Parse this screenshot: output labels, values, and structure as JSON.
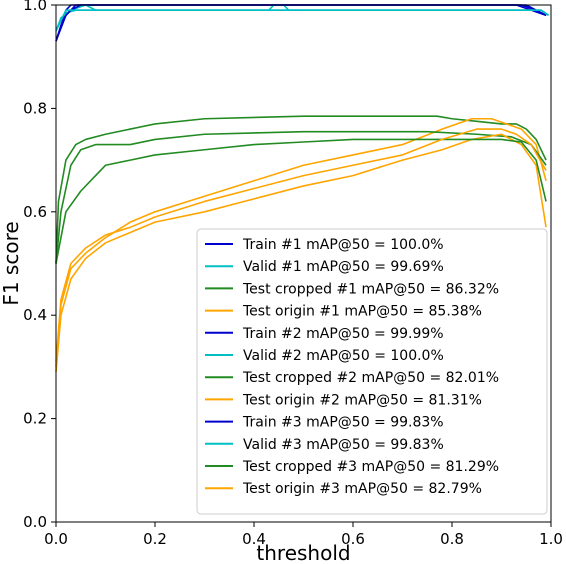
{
  "chart_data": {
    "type": "line",
    "title": "",
    "xlabel": "threshold",
    "ylabel": "F1 score",
    "xlim": [
      0.0,
      1.0
    ],
    "ylim": [
      0.0,
      1.0
    ],
    "xticks": [
      "0.0",
      "0.2",
      "0.4",
      "0.6",
      "0.8",
      "1.0"
    ],
    "yticks": [
      "0.0",
      "0.2",
      "0.4",
      "0.6",
      "0.8",
      "1.0"
    ],
    "grid": false,
    "legend_position": "lower-right",
    "colors": {
      "train": "#0000cd",
      "valid": "#00bfc4",
      "test_cropped": "#228b22",
      "test_origin": "#ffa500"
    },
    "series": [
      {
        "name": "Train #1 mAP@50 = 100.0%",
        "color": "#0000cd",
        "points": [
          [
            0.0,
            0.93
          ],
          [
            0.01,
            0.955
          ],
          [
            0.02,
            0.98
          ],
          [
            0.03,
            0.99
          ],
          [
            0.04,
            1.0
          ],
          [
            0.5,
            1.0
          ],
          [
            0.93,
            1.0
          ],
          [
            0.96,
            0.99
          ],
          [
            0.99,
            0.98
          ]
        ]
      },
      {
        "name": "Valid #1 mAP@50 = 99.69%",
        "color": "#00bfc4",
        "points": [
          [
            0.0,
            0.95
          ],
          [
            0.01,
            0.97
          ],
          [
            0.02,
            0.985
          ],
          [
            0.04,
            0.99
          ],
          [
            0.43,
            0.99
          ],
          [
            0.44,
            1.0
          ],
          [
            0.46,
            1.0
          ],
          [
            0.47,
            0.99
          ],
          [
            0.97,
            0.99
          ],
          [
            0.99,
            0.98
          ]
        ]
      },
      {
        "name": "Test cropped #1 mAP@50 = 86.32%",
        "color": "#228b22",
        "points": [
          [
            0.0,
            0.5
          ],
          [
            0.005,
            0.62
          ],
          [
            0.02,
            0.7
          ],
          [
            0.04,
            0.73
          ],
          [
            0.06,
            0.74
          ],
          [
            0.1,
            0.75
          ],
          [
            0.15,
            0.76
          ],
          [
            0.2,
            0.77
          ],
          [
            0.3,
            0.78
          ],
          [
            0.5,
            0.785
          ],
          [
            0.77,
            0.785
          ],
          [
            0.8,
            0.78
          ],
          [
            0.85,
            0.775
          ],
          [
            0.9,
            0.77
          ],
          [
            0.93,
            0.77
          ],
          [
            0.95,
            0.76
          ],
          [
            0.97,
            0.74
          ],
          [
            0.99,
            0.7
          ]
        ]
      },
      {
        "name": "Test origin #1 mAP@50 = 85.38%",
        "color": "#ffa500",
        "points": [
          [
            0.0,
            0.3
          ],
          [
            0.01,
            0.42
          ],
          [
            0.03,
            0.49
          ],
          [
            0.06,
            0.52
          ],
          [
            0.1,
            0.55
          ],
          [
            0.15,
            0.58
          ],
          [
            0.2,
            0.6
          ],
          [
            0.3,
            0.63
          ],
          [
            0.4,
            0.66
          ],
          [
            0.5,
            0.69
          ],
          [
            0.6,
            0.71
          ],
          [
            0.7,
            0.73
          ],
          [
            0.78,
            0.76
          ],
          [
            0.84,
            0.78
          ],
          [
            0.88,
            0.78
          ],
          [
            0.91,
            0.77
          ],
          [
            0.94,
            0.76
          ],
          [
            0.97,
            0.73
          ],
          [
            0.99,
            0.66
          ]
        ]
      },
      {
        "name": "Train #2 mAP@50 = 99.99%",
        "color": "#0000cd",
        "points": [
          [
            0.0,
            0.93
          ],
          [
            0.01,
            0.96
          ],
          [
            0.02,
            0.99
          ],
          [
            0.03,
            1.0
          ],
          [
            0.5,
            1.0
          ],
          [
            0.94,
            1.0
          ],
          [
            0.97,
            0.99
          ],
          [
            0.99,
            0.98
          ]
        ]
      },
      {
        "name": "Valid #2 mAP@50 = 100.0%",
        "color": "#00bfc4",
        "points": [
          [
            0.0,
            0.95
          ],
          [
            0.01,
            0.975
          ],
          [
            0.03,
            0.99
          ],
          [
            0.06,
            1.0
          ],
          [
            0.08,
            0.99
          ],
          [
            0.5,
            0.99
          ],
          [
            0.98,
            0.99
          ],
          [
            0.995,
            0.98
          ]
        ]
      },
      {
        "name": "Test cropped #2 mAP@50 = 82.01%",
        "color": "#228b22",
        "points": [
          [
            0.0,
            0.5
          ],
          [
            0.01,
            0.6
          ],
          [
            0.03,
            0.69
          ],
          [
            0.05,
            0.72
          ],
          [
            0.08,
            0.73
          ],
          [
            0.15,
            0.73
          ],
          [
            0.2,
            0.74
          ],
          [
            0.3,
            0.75
          ],
          [
            0.5,
            0.755
          ],
          [
            0.75,
            0.755
          ],
          [
            0.85,
            0.75
          ],
          [
            0.92,
            0.745
          ],
          [
            0.96,
            0.73
          ],
          [
            0.99,
            0.69
          ]
        ]
      },
      {
        "name": "Test origin #2 mAP@50 = 81.31%",
        "color": "#ffa500",
        "points": [
          [
            0.0,
            0.29
          ],
          [
            0.01,
            0.4
          ],
          [
            0.03,
            0.47
          ],
          [
            0.06,
            0.51
          ],
          [
            0.1,
            0.54
          ],
          [
            0.15,
            0.56
          ],
          [
            0.2,
            0.58
          ],
          [
            0.3,
            0.6
          ],
          [
            0.4,
            0.625
          ],
          [
            0.5,
            0.65
          ],
          [
            0.6,
            0.67
          ],
          [
            0.7,
            0.7
          ],
          [
            0.78,
            0.72
          ],
          [
            0.84,
            0.74
          ],
          [
            0.9,
            0.75
          ],
          [
            0.94,
            0.73
          ],
          [
            0.97,
            0.69
          ],
          [
            0.99,
            0.57
          ]
        ]
      },
      {
        "name": "Train #3 mAP@50 = 99.83%",
        "color": "#0000cd",
        "points": [
          [
            0.0,
            0.93
          ],
          [
            0.01,
            0.96
          ],
          [
            0.02,
            0.98
          ],
          [
            0.03,
            0.99
          ],
          [
            0.05,
            1.0
          ],
          [
            0.5,
            1.0
          ],
          [
            0.95,
            1.0
          ],
          [
            0.97,
            0.99
          ],
          [
            0.99,
            0.98
          ]
        ]
      },
      {
        "name": "Valid #3 mAP@50 = 99.83%",
        "color": "#00bfc4",
        "points": [
          [
            0.0,
            0.95
          ],
          [
            0.01,
            0.97
          ],
          [
            0.02,
            0.99
          ],
          [
            0.5,
            0.99
          ],
          [
            0.98,
            0.99
          ],
          [
            0.995,
            0.98
          ]
        ]
      },
      {
        "name": "Test cropped #3 mAP@50 = 81.29%",
        "color": "#228b22",
        "points": [
          [
            0.0,
            0.5
          ],
          [
            0.02,
            0.6
          ],
          [
            0.05,
            0.64
          ],
          [
            0.08,
            0.67
          ],
          [
            0.1,
            0.69
          ],
          [
            0.15,
            0.7
          ],
          [
            0.2,
            0.71
          ],
          [
            0.3,
            0.72
          ],
          [
            0.4,
            0.73
          ],
          [
            0.5,
            0.735
          ],
          [
            0.6,
            0.74
          ],
          [
            0.7,
            0.74
          ],
          [
            0.8,
            0.74
          ],
          [
            0.9,
            0.74
          ],
          [
            0.94,
            0.735
          ],
          [
            0.97,
            0.7
          ],
          [
            0.99,
            0.62
          ]
        ]
      },
      {
        "name": "Test origin #3 mAP@50 = 82.79%",
        "color": "#ffa500",
        "points": [
          [
            0.0,
            0.31
          ],
          [
            0.01,
            0.43
          ],
          [
            0.03,
            0.5
          ],
          [
            0.06,
            0.53
          ],
          [
            0.1,
            0.555
          ],
          [
            0.15,
            0.57
          ],
          [
            0.2,
            0.59
          ],
          [
            0.3,
            0.62
          ],
          [
            0.4,
            0.645
          ],
          [
            0.5,
            0.67
          ],
          [
            0.6,
            0.69
          ],
          [
            0.7,
            0.71
          ],
          [
            0.78,
            0.74
          ],
          [
            0.85,
            0.76
          ],
          [
            0.9,
            0.76
          ],
          [
            0.93,
            0.75
          ],
          [
            0.96,
            0.73
          ],
          [
            0.99,
            0.68
          ]
        ]
      }
    ]
  }
}
